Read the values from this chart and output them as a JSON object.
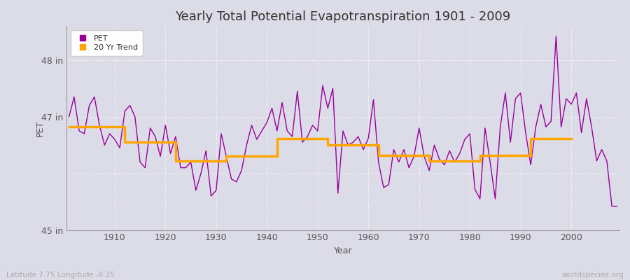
{
  "title": "Yearly Total Potential Evapotranspiration 1901 - 2009",
  "xlabel": "Year",
  "ylabel": "PET",
  "lat_lon_label": "Latitude 7.75 Longitude -8.25",
  "watermark": "worldspecies.org",
  "years": [
    1901,
    1902,
    1903,
    1904,
    1905,
    1906,
    1907,
    1908,
    1909,
    1910,
    1911,
    1912,
    1913,
    1914,
    1915,
    1916,
    1917,
    1918,
    1919,
    1920,
    1921,
    1922,
    1923,
    1924,
    1925,
    1926,
    1927,
    1928,
    1929,
    1930,
    1931,
    1932,
    1933,
    1934,
    1935,
    1936,
    1937,
    1938,
    1939,
    1940,
    1941,
    1942,
    1943,
    1944,
    1945,
    1946,
    1947,
    1948,
    1949,
    1950,
    1951,
    1952,
    1953,
    1954,
    1955,
    1956,
    1957,
    1958,
    1959,
    1960,
    1961,
    1962,
    1963,
    1964,
    1965,
    1966,
    1967,
    1968,
    1969,
    1970,
    1971,
    1972,
    1973,
    1974,
    1975,
    1976,
    1977,
    1978,
    1979,
    1980,
    1981,
    1982,
    1983,
    1984,
    1985,
    1986,
    1987,
    1988,
    1989,
    1990,
    1991,
    1992,
    1993,
    1994,
    1995,
    1996,
    1997,
    1998,
    1999,
    2000,
    2001,
    2002,
    2003,
    2004,
    2005,
    2006,
    2007,
    2008,
    2009
  ],
  "pet": [
    47.0,
    47.35,
    46.75,
    46.7,
    47.2,
    47.35,
    46.85,
    46.5,
    46.7,
    46.6,
    46.45,
    47.1,
    47.2,
    47.0,
    46.2,
    46.1,
    46.8,
    46.65,
    46.3,
    46.85,
    46.35,
    46.65,
    46.1,
    46.1,
    46.2,
    45.7,
    46.0,
    46.4,
    45.6,
    45.7,
    46.7,
    46.3,
    45.9,
    45.85,
    46.05,
    46.5,
    46.85,
    46.6,
    46.75,
    46.9,
    47.15,
    46.75,
    47.25,
    46.75,
    46.65,
    47.45,
    46.55,
    46.65,
    46.85,
    46.75,
    47.55,
    47.15,
    47.5,
    45.65,
    46.75,
    46.5,
    46.55,
    46.65,
    46.42,
    46.62,
    47.3,
    46.2,
    45.75,
    45.8,
    46.42,
    46.2,
    46.42,
    46.1,
    46.3,
    46.8,
    46.3,
    46.05,
    46.5,
    46.25,
    46.15,
    46.4,
    46.2,
    46.35,
    46.6,
    46.7,
    45.72,
    45.55,
    46.8,
    46.2,
    45.55,
    46.82,
    47.42,
    46.55,
    47.32,
    47.42,
    46.72,
    46.15,
    46.82,
    47.22,
    46.82,
    46.92,
    48.42,
    46.82,
    47.32,
    47.22,
    47.42,
    46.72,
    47.32,
    46.82,
    46.22,
    46.42,
    46.22,
    45.42,
    45.42
  ],
  "trend": [
    46.82,
    46.82,
    46.82,
    46.82,
    46.82,
    46.82,
    46.82,
    46.82,
    46.82,
    46.82,
    46.82,
    46.55,
    46.55,
    46.55,
    46.55,
    46.55,
    46.55,
    46.55,
    46.55,
    46.55,
    46.55,
    46.22,
    46.22,
    46.22,
    46.22,
    46.22,
    46.22,
    46.22,
    46.22,
    46.22,
    46.22,
    46.3,
    46.3,
    46.3,
    46.3,
    46.3,
    46.3,
    46.3,
    46.3,
    46.3,
    46.3,
    46.62,
    46.62,
    46.62,
    46.62,
    46.62,
    46.62,
    46.62,
    46.62,
    46.62,
    46.62,
    46.5,
    46.5,
    46.5,
    46.5,
    46.5,
    46.5,
    46.5,
    46.5,
    46.5,
    46.5,
    46.32,
    46.32,
    46.32,
    46.32,
    46.32,
    46.32,
    46.32,
    46.32,
    46.32,
    46.32,
    46.22,
    46.22,
    46.22,
    46.22,
    46.22,
    46.22,
    46.22,
    46.22,
    46.22,
    46.22,
    46.32,
    46.32,
    46.32,
    46.32,
    46.32,
    46.32,
    46.32,
    46.32,
    46.32,
    46.32,
    46.62,
    46.62,
    46.62,
    46.62,
    46.62,
    46.62,
    46.62,
    46.62,
    46.62,
    null,
    null,
    null,
    null,
    null,
    null,
    null,
    null,
    null
  ],
  "pet_color": "#990099",
  "trend_color": "#FFA500",
  "bg_color": "#dcdce8",
  "grid_color": "#ffffff",
  "ylim": [
    45.0,
    48.6
  ],
  "ytick_positions": [
    45.0,
    47.0,
    48.0
  ],
  "ytick_labels": [
    "45 in",
    "47 in",
    "48 in"
  ],
  "xtick_positions": [
    1910,
    1920,
    1930,
    1940,
    1950,
    1960,
    1970,
    1980,
    1990,
    2000
  ],
  "grid_hlines": [
    45.0,
    46.0,
    47.0,
    48.0
  ],
  "title_fontsize": 13,
  "axis_label_fontsize": 9,
  "tick_fontsize": 9,
  "legend_fontsize": 8
}
